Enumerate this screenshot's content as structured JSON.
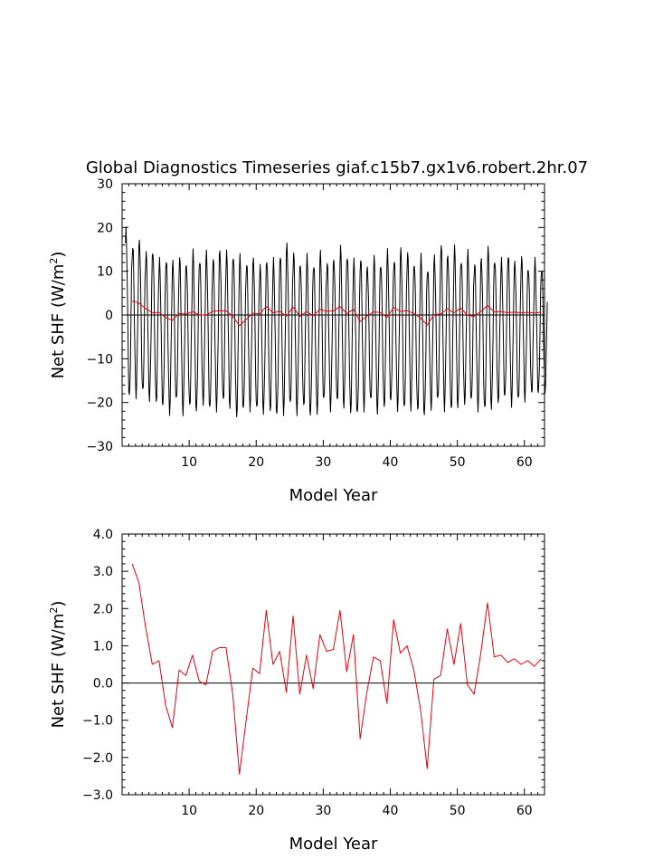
{
  "chart_data": [
    {
      "type": "line",
      "title": "Global Diagnostics Timeseries giaf.c15b7.gx1v6.robert.2hr.07",
      "xlabel": "Model Year",
      "ylabel_main": "Net SHF (W/m",
      "ylabel_sup": "2",
      "ylabel_close": ")",
      "xlim": [
        0,
        63
      ],
      "ylim": [
        -30,
        30
      ],
      "xticks": [
        10,
        20,
        30,
        40,
        50,
        60
      ],
      "yticks": [
        -30,
        -20,
        -10,
        0,
        10,
        20,
        30
      ],
      "ytick_labels": [
        "−30",
        "−20",
        "−10",
        "0",
        "10",
        "20",
        "30"
      ],
      "zero_line": true,
      "series": [
        {
          "color": "#000000",
          "style": "monthly",
          "cycle": {
            "year_start": 0.5,
            "months": 12,
            "min_month": 7
          },
          "peaks": [
            19,
            16,
            17,
            14,
            15,
            12,
            13,
            12,
            13,
            12,
            14,
            13,
            14,
            13,
            15,
            14,
            14,
            13,
            12,
            13,
            11,
            13,
            12,
            14,
            16,
            14,
            12,
            13,
            12,
            14,
            12,
            13,
            15,
            14,
            12,
            13,
            11,
            13,
            12,
            14,
            13,
            15,
            14,
            12,
            13,
            11,
            13,
            16,
            14,
            15,
            13,
            14,
            12,
            13,
            15,
            13,
            12,
            14,
            12,
            13,
            11,
            12,
            11
          ],
          "troughs": [
            -19,
            -18,
            -18,
            -19,
            -20,
            -21,
            -22,
            -20,
            -22,
            -21,
            -22,
            -20,
            -22,
            -21,
            -20,
            -21,
            -23,
            -22,
            -21,
            -22,
            -22,
            -22,
            -23,
            -22,
            -21,
            -22,
            -21,
            -23,
            -22,
            -20,
            -21,
            -20,
            -21,
            -22,
            -23,
            -21,
            -20,
            -22,
            -21,
            -20,
            -21,
            -22,
            -21,
            -22,
            -23,
            -21,
            -20,
            -21,
            -22,
            -21,
            -20,
            -20,
            -21,
            -22,
            -21,
            -20,
            -19,
            -20,
            -20,
            -19,
            -18,
            -18,
            -17
          ]
        },
        {
          "color": "#e8000b",
          "style": "annual",
          "x_start": 1.5,
          "values": [
            3.2,
            2.7,
            1.5,
            0.5,
            0.6,
            -0.6,
            -1.2,
            0.35,
            0.2,
            0.75,
            0.05,
            -0.05,
            0.85,
            0.95,
            0.95,
            -0.3,
            -2.45,
            -1.0,
            0.4,
            0.25,
            1.95,
            0.5,
            0.85,
            -0.25,
            1.8,
            -0.3,
            0.75,
            -0.15,
            1.3,
            0.85,
            0.9,
            1.95,
            0.3,
            1.3,
            -1.5,
            -0.25,
            0.7,
            0.6,
            -0.55,
            1.7,
            0.8,
            1.0,
            0.35,
            -0.7,
            -2.3,
            0.1,
            0.2,
            1.45,
            0.5,
            1.6,
            -0.05,
            -0.3,
            0.8,
            2.15,
            0.7,
            0.75,
            0.55,
            0.65,
            0.5,
            0.6,
            0.45,
            0.65
          ]
        }
      ]
    },
    {
      "type": "line",
      "title": "",
      "xlabel": "Model Year",
      "ylabel_main": "Net SHF (W/m",
      "ylabel_sup": "2",
      "ylabel_close": ")",
      "xlim": [
        0,
        63
      ],
      "ylim": [
        -3,
        4
      ],
      "xticks": [
        10,
        20,
        30,
        40,
        50,
        60
      ],
      "yticks": [
        -3,
        -2,
        -1,
        0,
        1,
        2,
        3,
        4
      ],
      "ytick_labels": [
        "−3.0",
        "−2.0",
        "−1.0",
        "0.0",
        "1.0",
        "2.0",
        "3.0",
        "4.0"
      ],
      "zero_line": true,
      "series": [
        {
          "color": "#e8000b",
          "style": "annual",
          "x_start": 1.5,
          "values": [
            3.2,
            2.7,
            1.5,
            0.5,
            0.6,
            -0.6,
            -1.2,
            0.35,
            0.2,
            0.75,
            0.05,
            -0.05,
            0.85,
            0.95,
            0.95,
            -0.3,
            -2.45,
            -1.0,
            0.4,
            0.25,
            1.95,
            0.5,
            0.85,
            -0.25,
            1.8,
            -0.3,
            0.75,
            -0.15,
            1.3,
            0.85,
            0.9,
            1.95,
            0.3,
            1.3,
            -1.5,
            -0.25,
            0.7,
            0.6,
            -0.55,
            1.7,
            0.8,
            1.0,
            0.35,
            -0.7,
            -2.3,
            0.1,
            0.2,
            1.45,
            0.5,
            1.6,
            -0.05,
            -0.3,
            0.8,
            2.15,
            0.7,
            0.75,
            0.55,
            0.65,
            0.5,
            0.6,
            0.45,
            0.65
          ]
        }
      ]
    }
  ]
}
